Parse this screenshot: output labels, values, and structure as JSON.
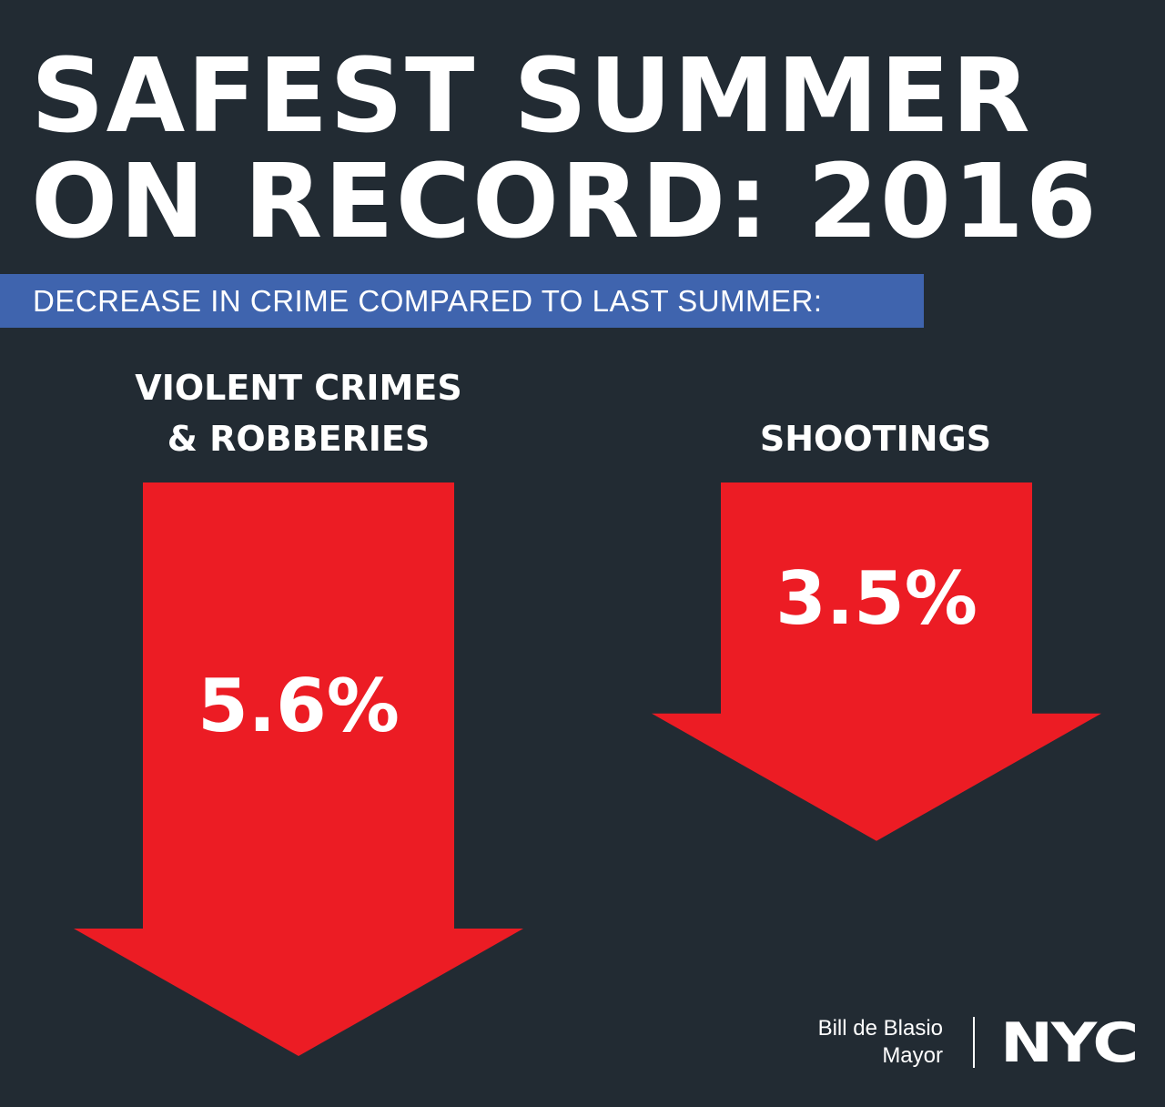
{
  "header": {
    "title_line_1": "SAFEST SUMMER",
    "title_line_2": "ON RECORD: 2016",
    "subtitle": "DECREASE IN CRIME COMPARED TO LAST SUMMER:"
  },
  "chart_data": {
    "type": "bar",
    "title": "SAFEST SUMMER ON RECORD: 2016",
    "subtitle": "DECREASE IN CRIME COMPARED TO LAST SUMMER:",
    "categories": [
      "VIOLENT CRIMES & ROBBERIES",
      "SHOOTINGS"
    ],
    "category_lines": [
      [
        "VIOLENT CRIMES",
        "& ROBBERIES"
      ],
      [
        "SHOOTINGS"
      ]
    ],
    "values": [
      5.6,
      3.5
    ],
    "value_labels": [
      "5.6%",
      "3.5%"
    ],
    "unit": "%",
    "direction": "decrease",
    "mark_shape": "down-arrow"
  },
  "footer": {
    "name": "Bill de Blasio",
    "role": "Mayor",
    "logo_text": "NYC"
  },
  "colors": {
    "background": "#222b33",
    "subtitle_bar": "#3f64ae",
    "arrow": "#ec1c24",
    "text": "#ffffff"
  }
}
